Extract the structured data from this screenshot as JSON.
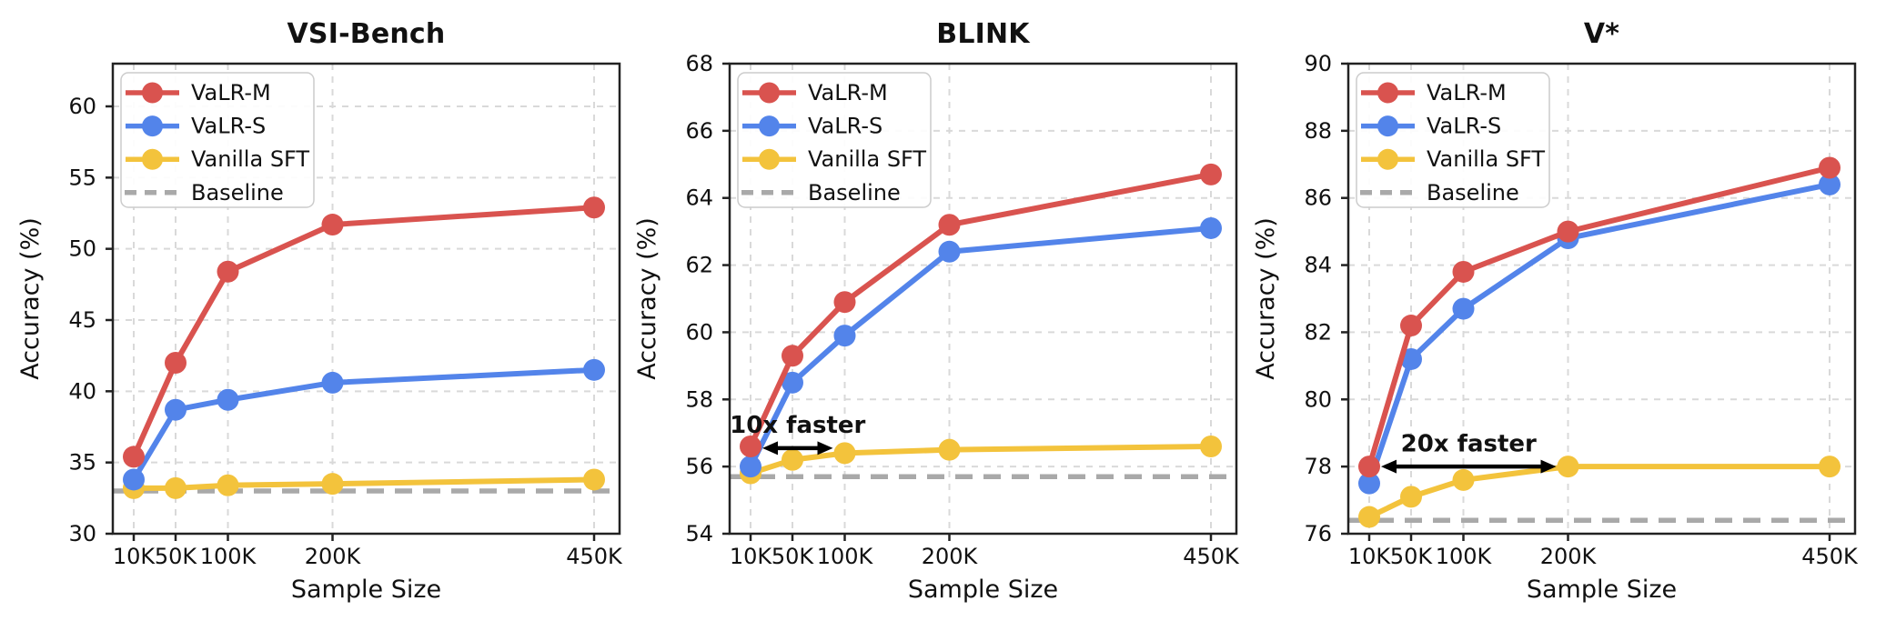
{
  "figure": {
    "x_axis_label": "Sample Size",
    "y_axis_label": "Accuracy (%)"
  },
  "style": {
    "frame_color": "#222222",
    "grid_color": "#D9D9D9",
    "text_color": "#111111",
    "legend_border_color": "#CCCCCC",
    "annotation_color": "#000000"
  },
  "chart_data": [
    {
      "type": "line",
      "title": "VSI-Bench",
      "xlabel": "Sample Size",
      "ylabel": "Accuracy (%)",
      "x_tick_labels": [
        "10K",
        "50K",
        "100K",
        "200K",
        "450K"
      ],
      "x_values_k": [
        10,
        50,
        100,
        200,
        450
      ],
      "ylim": [
        30,
        63
      ],
      "yticks": [
        30,
        35,
        40,
        45,
        50,
        55,
        60
      ],
      "grid": true,
      "legend_position": "upper-left",
      "series": [
        {
          "name": "VaLR-M",
          "color": "#D9534F",
          "values": [
            35.4,
            42.0,
            48.4,
            51.7,
            52.9
          ]
        },
        {
          "name": "VaLR-S",
          "color": "#5384EA",
          "values": [
            33.8,
            38.7,
            39.4,
            40.6,
            41.5
          ]
        },
        {
          "name": "Vanilla SFT",
          "color": "#F3C33C",
          "values": [
            33.2,
            33.2,
            33.4,
            33.5,
            33.8
          ]
        }
      ],
      "baseline": {
        "name": "Baseline",
        "value": 33.0,
        "color": "#A9A9A9"
      },
      "annotation": null
    },
    {
      "type": "line",
      "title": "BLINK",
      "xlabel": "Sample Size",
      "ylabel": "Accuracy (%)",
      "x_tick_labels": [
        "10K",
        "50K",
        "100K",
        "200K",
        "450K"
      ],
      "x_values_k": [
        10,
        50,
        100,
        200,
        450
      ],
      "ylim": [
        54,
        68
      ],
      "yticks": [
        54,
        56,
        58,
        60,
        62,
        64,
        66,
        68
      ],
      "grid": true,
      "legend_position": "upper-left",
      "series": [
        {
          "name": "VaLR-M",
          "color": "#D9534F",
          "values": [
            56.6,
            59.3,
            60.9,
            63.2,
            64.7
          ]
        },
        {
          "name": "VaLR-S",
          "color": "#5384EA",
          "values": [
            56.0,
            58.5,
            59.9,
            62.4,
            63.1
          ]
        },
        {
          "name": "Vanilla SFT",
          "color": "#F3C33C",
          "values": [
            55.8,
            56.2,
            56.4,
            56.5,
            56.6
          ]
        }
      ],
      "baseline": {
        "name": "Baseline",
        "value": 55.7,
        "color": "#A9A9A9"
      },
      "annotation": {
        "text": "10x faster",
        "from_k": 10,
        "to_k": 100,
        "arrow_y": 56.55,
        "text_y": 57.25
      }
    },
    {
      "type": "line",
      "title": "V*",
      "xlabel": "Sample Size",
      "ylabel": "Accuracy (%)",
      "x_tick_labels": [
        "10K",
        "50K",
        "100K",
        "200K",
        "450K"
      ],
      "x_values_k": [
        10,
        50,
        100,
        200,
        450
      ],
      "ylim": [
        76,
        90
      ],
      "yticks": [
        76,
        78,
        80,
        82,
        84,
        86,
        88,
        90
      ],
      "grid": true,
      "legend_position": "upper-left",
      "series": [
        {
          "name": "VaLR-M",
          "color": "#D9534F",
          "values": [
            78.0,
            82.2,
            83.8,
            85.0,
            86.9
          ]
        },
        {
          "name": "VaLR-S",
          "color": "#5384EA",
          "values": [
            77.5,
            81.2,
            82.7,
            84.8,
            86.4
          ]
        },
        {
          "name": "Vanilla SFT",
          "color": "#F3C33C",
          "values": [
            76.5,
            77.1,
            77.6,
            78.0,
            78.0
          ]
        }
      ],
      "baseline": {
        "name": "Baseline",
        "value": 76.4,
        "color": "#A9A9A9"
      },
      "annotation": {
        "text": "20x faster",
        "from_k": 10,
        "to_k": 200,
        "arrow_y": 78.0,
        "text_y": 78.7
      }
    }
  ]
}
